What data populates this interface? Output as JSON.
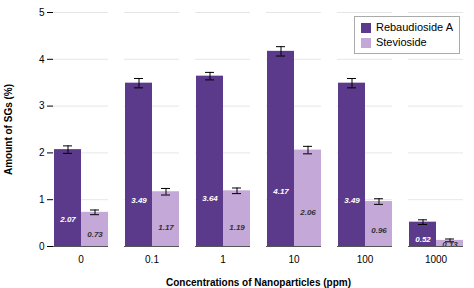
{
  "chart_data": {
    "type": "bar",
    "xlabel": "Concentrations of Nanoparticles (ppm)",
    "ylabel": "Amount of SGs (%)",
    "categories": [
      "0",
      "0.1",
      "1",
      "10",
      "100",
      "1000"
    ],
    "series": [
      {
        "name": "Rebaudioside A",
        "color": "#5B3A8C",
        "values": [
          2.07,
          3.49,
          3.64,
          4.17,
          3.49,
          0.52
        ],
        "errors": [
          0.08,
          0.1,
          0.08,
          0.1,
          0.1,
          0.05
        ]
      },
      {
        "name": "Stevioside",
        "color": "#C4A8D8",
        "values": [
          0.73,
          1.17,
          1.19,
          2.06,
          0.96,
          0.13
        ],
        "errors": [
          0.05,
          0.07,
          0.06,
          0.08,
          0.06,
          0.03
        ]
      }
    ],
    "ylim": [
      0,
      5
    ],
    "yticks": [
      0,
      1,
      2,
      3,
      4,
      5
    ],
    "grid": true,
    "legend": "upper right",
    "data_labels": true
  }
}
